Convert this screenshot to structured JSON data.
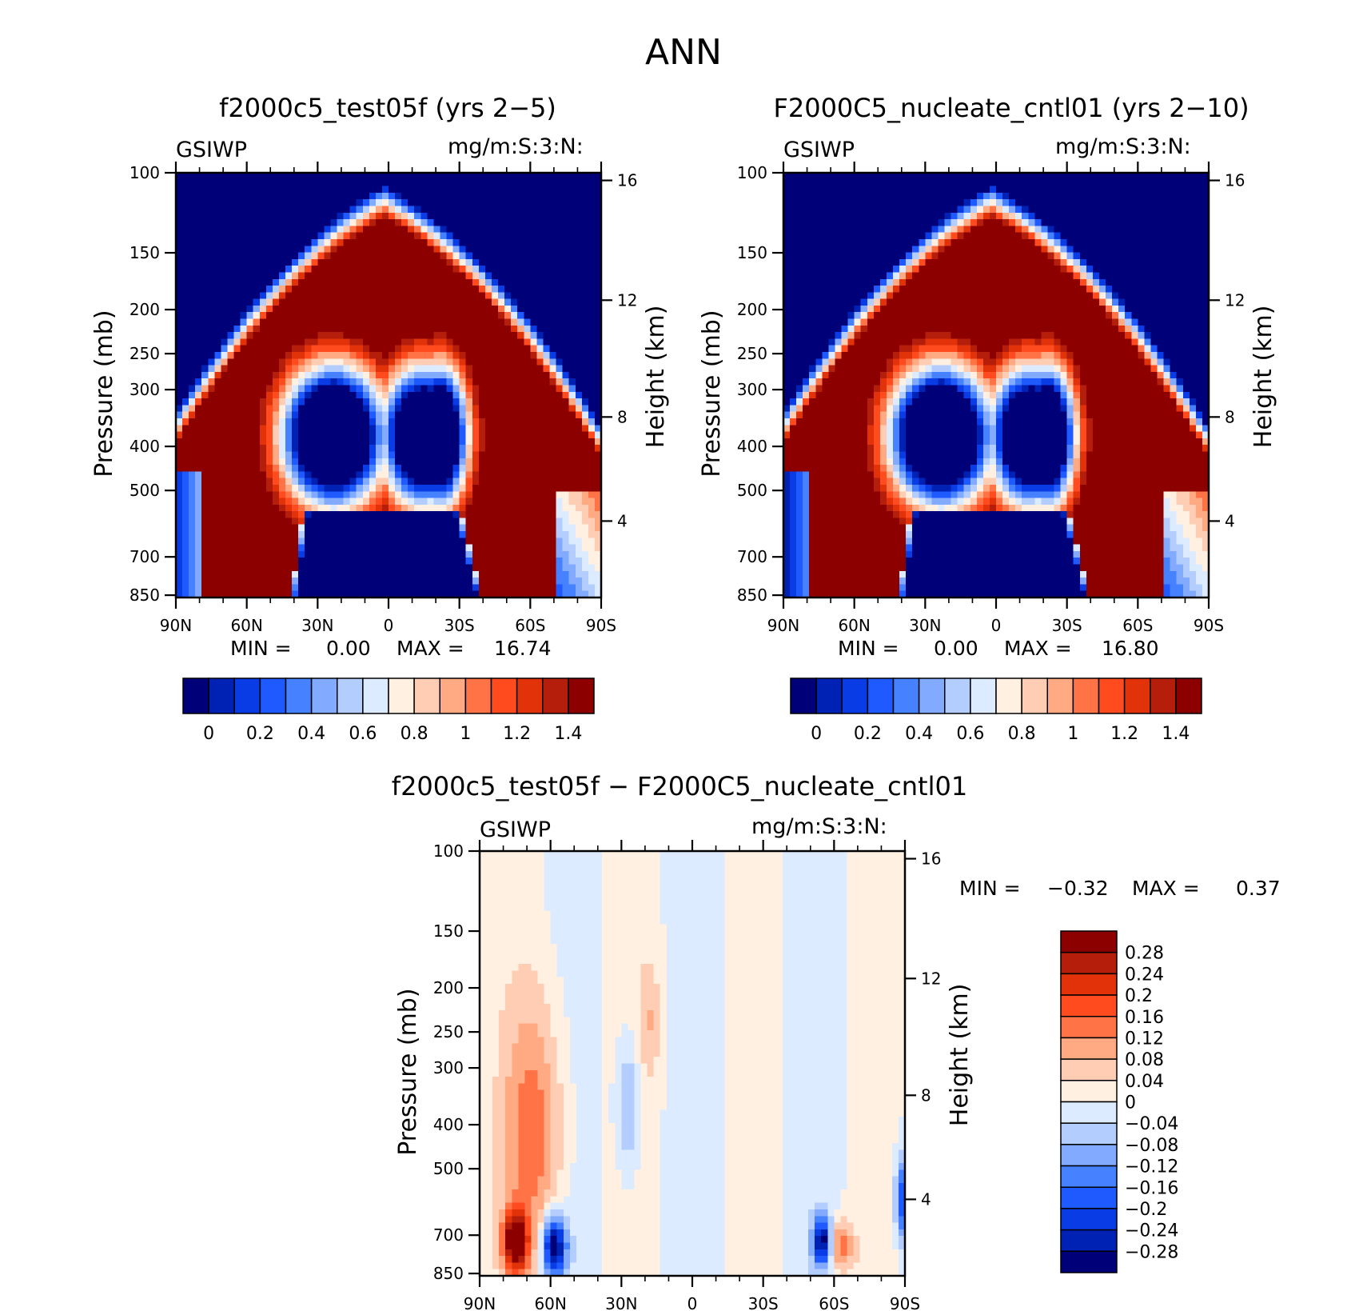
{
  "figure": {
    "title": "ANN",
    "colors": {
      "bg": "#ffffff",
      "field_scale": [
        "#000078",
        "#0022b4",
        "#0a3ce6",
        "#1e5aff",
        "#4682ff",
        "#82aaff",
        "#b4cdff",
        "#dcebff",
        "#fff0e1",
        "#ffcdb4",
        "#ffaa82",
        "#ff7346",
        "#ff4b1e",
        "#e1320a",
        "#b41e0a",
        "#8c0000"
      ],
      "diff_scale": [
        "#000078",
        "#0022b4",
        "#0a3ce6",
        "#1e5aff",
        "#4682ff",
        "#82aaff",
        "#b4cdff",
        "#dcebff",
        "#fff0e1",
        "#ffcdb4",
        "#ffaa82",
        "#ff7346",
        "#ff4b1e",
        "#e1320a",
        "#b41e0a",
        "#8c0000"
      ]
    }
  },
  "chart_data": [
    {
      "type": "heatmap",
      "id": "test",
      "title": "f2000c5_test05f (yrs 2−5)",
      "corner_left": "GSIWP",
      "corner_right": "mg/m:S:3:N:",
      "ylabel": "Pressure (mb)",
      "ylabel_right": "Height (km)",
      "x_ticks": [
        "90N",
        "60N",
        "30N",
        "0",
        "30S",
        "60S",
        "90S"
      ],
      "x_tick_values": [
        90,
        60,
        30,
        0,
        -30,
        -60,
        -90
      ],
      "y_ticks": [
        100,
        150,
        200,
        250,
        300,
        400,
        500,
        700,
        850
      ],
      "y_right_ticks": [
        16,
        12,
        8,
        4
      ],
      "yscale": "log",
      "ylim": [
        100,
        1000
      ],
      "xlim": [
        90,
        -90
      ],
      "stats": {
        "min_label": "MIN =",
        "min": "0.00",
        "max_label": "MAX =",
        "max": "16.74"
      },
      "colorbar": {
        "labels": [
          "0",
          "0.2",
          "0.4",
          "0.6",
          "0.8",
          "1",
          "1.2",
          "1.4"
        ],
        "levels": [
          0,
          0.1,
          0.2,
          0.3,
          0.4,
          0.5,
          0.6,
          0.7,
          0.8,
          0.9,
          1.0,
          1.1,
          1.2,
          1.3,
          1.4
        ]
      }
    },
    {
      "type": "heatmap",
      "id": "cntl",
      "title": "F2000C5_nucleate_cntl01 (yrs 2−10)",
      "corner_left": "GSIWP",
      "corner_right": "mg/m:S:3:N:",
      "ylabel": "Pressure (mb)",
      "ylabel_right": "Height (km)",
      "x_ticks": [
        "90N",
        "60N",
        "30N",
        "0",
        "30S",
        "60S",
        "90S"
      ],
      "x_tick_values": [
        90,
        60,
        30,
        0,
        -30,
        -60,
        -90
      ],
      "y_ticks": [
        100,
        150,
        200,
        250,
        300,
        400,
        500,
        700,
        850
      ],
      "y_right_ticks": [
        16,
        12,
        8,
        4
      ],
      "yscale": "log",
      "ylim": [
        100,
        1000
      ],
      "xlim": [
        90,
        -90
      ],
      "stats": {
        "min_label": "MIN =",
        "min": "0.00",
        "max_label": "MAX =",
        "max": "16.80"
      },
      "colorbar": {
        "labels": [
          "0",
          "0.2",
          "0.4",
          "0.6",
          "0.8",
          "1",
          "1.2",
          "1.4"
        ],
        "levels": [
          0,
          0.1,
          0.2,
          0.3,
          0.4,
          0.5,
          0.6,
          0.7,
          0.8,
          0.9,
          1.0,
          1.1,
          1.2,
          1.3,
          1.4
        ]
      }
    },
    {
      "type": "heatmap",
      "id": "diff",
      "title": "f2000c5_test05f − F2000C5_nucleate_cntl01",
      "corner_left": "GSIWP",
      "corner_right": "mg/m:S:3:N:",
      "ylabel": "Pressure (mb)",
      "ylabel_right": "Height (km)",
      "x_ticks": [
        "90N",
        "60N",
        "30N",
        "0",
        "30S",
        "60S",
        "90S"
      ],
      "x_tick_values": [
        90,
        60,
        30,
        0,
        -30,
        -60,
        -90
      ],
      "y_ticks": [
        100,
        150,
        200,
        250,
        300,
        400,
        500,
        700,
        850
      ],
      "y_right_ticks": [
        16,
        12,
        8,
        4
      ],
      "yscale": "log",
      "ylim": [
        100,
        1000
      ],
      "xlim": [
        90,
        -90
      ],
      "stats": {
        "min_label": "MIN =",
        "min": "−0.32",
        "max_label": "MAX =",
        "max": "0.37"
      },
      "colorbar": {
        "labels": [
          "0.28",
          "0.24",
          "0.2",
          "0.16",
          "0.12",
          "0.08",
          "0.04",
          "0",
          "−0.04",
          "−0.08",
          "−0.12",
          "−0.16",
          "−0.2",
          "−0.24",
          "−0.28"
        ],
        "levels": [
          -0.28,
          -0.24,
          -0.2,
          -0.16,
          -0.12,
          -0.08,
          -0.04,
          0,
          0.04,
          0.08,
          0.12,
          0.16,
          0.2,
          0.24,
          0.28
        ]
      }
    }
  ]
}
